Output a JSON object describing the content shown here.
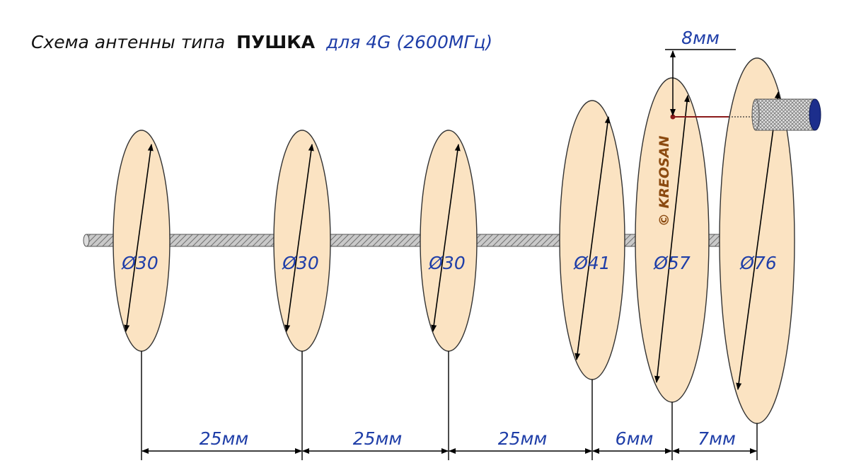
{
  "title": {
    "part1": "Схема антенны типа",
    "part2": "ПУШКА",
    "part3": "для 4G (2600МГц)"
  },
  "diameter_symbol": "Ø",
  "disks": [
    {
      "diameter": "30"
    },
    {
      "diameter": "30"
    },
    {
      "diameter": "30"
    },
    {
      "diameter": "41"
    },
    {
      "diameter": "57"
    },
    {
      "diameter": "76"
    }
  ],
  "spacings": [
    "25мм",
    "25мм",
    "25мм",
    "6мм",
    "7мм"
  ],
  "feed_offset": "8мм",
  "copyright": "© KREOSAN",
  "colors": {
    "disk_fill": "#fbe3c2",
    "disk_stroke": "#333333",
    "text_blue": "#1f3ea8",
    "feed_wire": "#8b1a1a",
    "cable_end": "#1c2e8c"
  }
}
